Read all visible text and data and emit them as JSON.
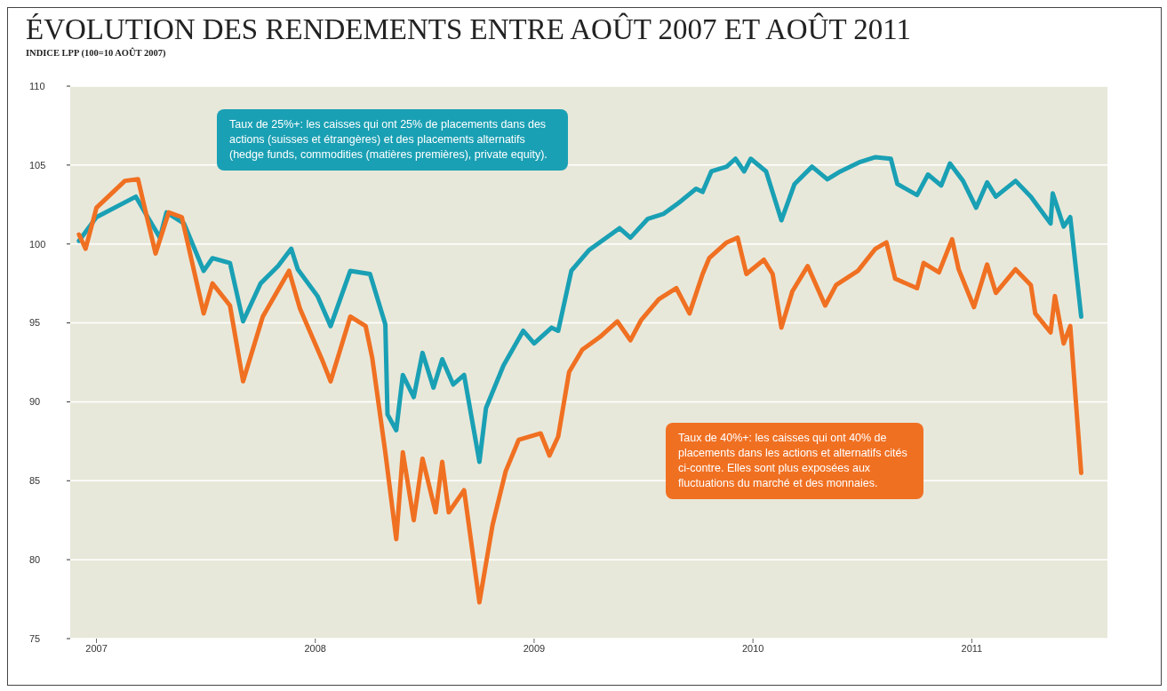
{
  "chart_data": {
    "type": "line",
    "title": "ÉVOLUTION DES RENDEMENTS ENTRE AOÛT 2007 ET AOÛT 2011",
    "subtitle": "INDICE LPP (100=10 AOÛT 2007)",
    "annotations": [
      "Taux de 25%+: les caisses qui ont 25% de placements dans des actions (suisses et étrangères) et des placements alternatifs (hedge funds, commodities (matières premières), private equity).",
      "Taux de 40%+: les caisses qui ont 40% de placements dans les actions et alternatifs cités ci-contre. Elles sont plus exposées aux fluctuations du marché et des monnaies."
    ],
    "xlim": [
      2006.88,
      2011.62
    ],
    "xticks": [
      2007,
      2008,
      2009,
      2010,
      2011
    ],
    "ylim": [
      75,
      110
    ],
    "yticks": [
      75,
      80,
      85,
      90,
      95,
      100,
      105,
      110
    ],
    "grid": "y",
    "line_style": "solid",
    "marker": "none",
    "series": [
      {
        "color": "#1aa0b4",
        "x": [
          2006.92,
          2007.0,
          2007.18,
          2007.23,
          2007.29,
          2007.32,
          2007.4,
          2007.49,
          2007.53,
          2007.61,
          2007.67,
          2007.75,
          2007.83,
          2007.89,
          2007.92,
          2008.01,
          2008.07,
          2008.16,
          2008.25,
          2008.32,
          2008.33,
          2008.37,
          2008.4,
          2008.45,
          2008.49,
          2008.54,
          2008.58,
          2008.63,
          2008.68,
          2008.75,
          2008.78,
          2008.86,
          2008.95,
          2009.0,
          2009.08,
          2009.11,
          2009.17,
          2009.25,
          2009.39,
          2009.44,
          2009.52,
          2009.59,
          2009.66,
          2009.74,
          2009.77,
          2009.81,
          2009.88,
          2009.92,
          2009.96,
          2009.99,
          2010.06,
          2010.13,
          2010.19,
          2010.27,
          2010.34,
          2010.4,
          2010.49,
          2010.56,
          2010.63,
          2010.66,
          2010.75,
          2010.8,
          2010.86,
          2010.9,
          2010.96,
          2011.02,
          2011.07,
          2011.11,
          2011.2,
          2011.27,
          2011.36,
          2011.37,
          2011.42,
          2011.45,
          2011.5
        ],
        "values": [
          100.2,
          101.7,
          103.0,
          101.8,
          100.4,
          102.0,
          101.3,
          98.3,
          99.1,
          98.8,
          95.1,
          97.5,
          98.6,
          99.7,
          98.4,
          96.7,
          94.8,
          98.3,
          98.1,
          94.9,
          89.2,
          88.2,
          91.7,
          90.3,
          93.1,
          90.9,
          92.7,
          91.1,
          91.7,
          86.2,
          89.6,
          92.3,
          94.5,
          93.7,
          94.7,
          94.5,
          98.3,
          99.6,
          101.0,
          100.4,
          101.6,
          101.9,
          102.6,
          103.5,
          103.3,
          104.6,
          104.9,
          105.4,
          104.6,
          105.4,
          104.6,
          101.5,
          103.8,
          104.9,
          104.1,
          104.6,
          105.2,
          105.5,
          105.4,
          103.8,
          103.1,
          104.4,
          103.7,
          105.1,
          104.0,
          102.3,
          103.9,
          103.0,
          104.0,
          103.0,
          101.3,
          103.2,
          101.1,
          101.7,
          95.4
        ]
      },
      {
        "color": "#f07022",
        "x": [
          2006.92,
          2006.95,
          2007.0,
          2007.13,
          2007.19,
          2007.21,
          2007.27,
          2007.33,
          2007.39,
          2007.49,
          2007.53,
          2007.61,
          2007.67,
          2007.76,
          2007.88,
          2007.93,
          2008.03,
          2008.07,
          2008.16,
          2008.23,
          2008.26,
          2008.32,
          2008.37,
          2008.4,
          2008.45,
          2008.49,
          2008.55,
          2008.58,
          2008.61,
          2008.68,
          2008.75,
          2008.81,
          2008.87,
          2008.93,
          2009.03,
          2009.07,
          2009.11,
          2009.16,
          2009.22,
          2009.3,
          2009.38,
          2009.44,
          2009.49,
          2009.57,
          2009.65,
          2009.71,
          2009.77,
          2009.8,
          2009.88,
          2009.93,
          2009.97,
          2010.05,
          2010.09,
          2010.13,
          2010.18,
          2010.25,
          2010.33,
          2010.38,
          2010.48,
          2010.56,
          2010.61,
          2010.65,
          2010.75,
          2010.78,
          2010.85,
          2010.91,
          2010.94,
          2011.01,
          2011.07,
          2011.11,
          2011.2,
          2011.27,
          2011.29,
          2011.36,
          2011.38,
          2011.42,
          2011.45,
          2011.5
        ],
        "values": [
          100.6,
          99.7,
          102.3,
          104.0,
          104.1,
          102.9,
          99.4,
          102.0,
          101.7,
          95.6,
          97.5,
          96.1,
          91.3,
          95.4,
          98.3,
          95.9,
          92.7,
          91.3,
          95.4,
          94.8,
          92.8,
          86.8,
          81.3,
          86.8,
          82.5,
          86.4,
          83.0,
          86.2,
          83.0,
          84.4,
          77.3,
          82.2,
          85.6,
          87.6,
          88.0,
          86.6,
          87.8,
          91.9,
          93.3,
          94.1,
          95.1,
          93.9,
          95.2,
          96.5,
          97.2,
          95.6,
          98.1,
          99.1,
          100.1,
          100.4,
          98.1,
          99.0,
          98.1,
          94.7,
          97.0,
          98.6,
          96.1,
          97.4,
          98.3,
          99.7,
          100.1,
          97.8,
          97.2,
          98.8,
          98.2,
          100.3,
          98.4,
          96.0,
          98.7,
          96.9,
          98.4,
          97.4,
          95.6,
          94.4,
          96.7,
          93.7,
          94.8,
          85.5
        ]
      }
    ]
  }
}
